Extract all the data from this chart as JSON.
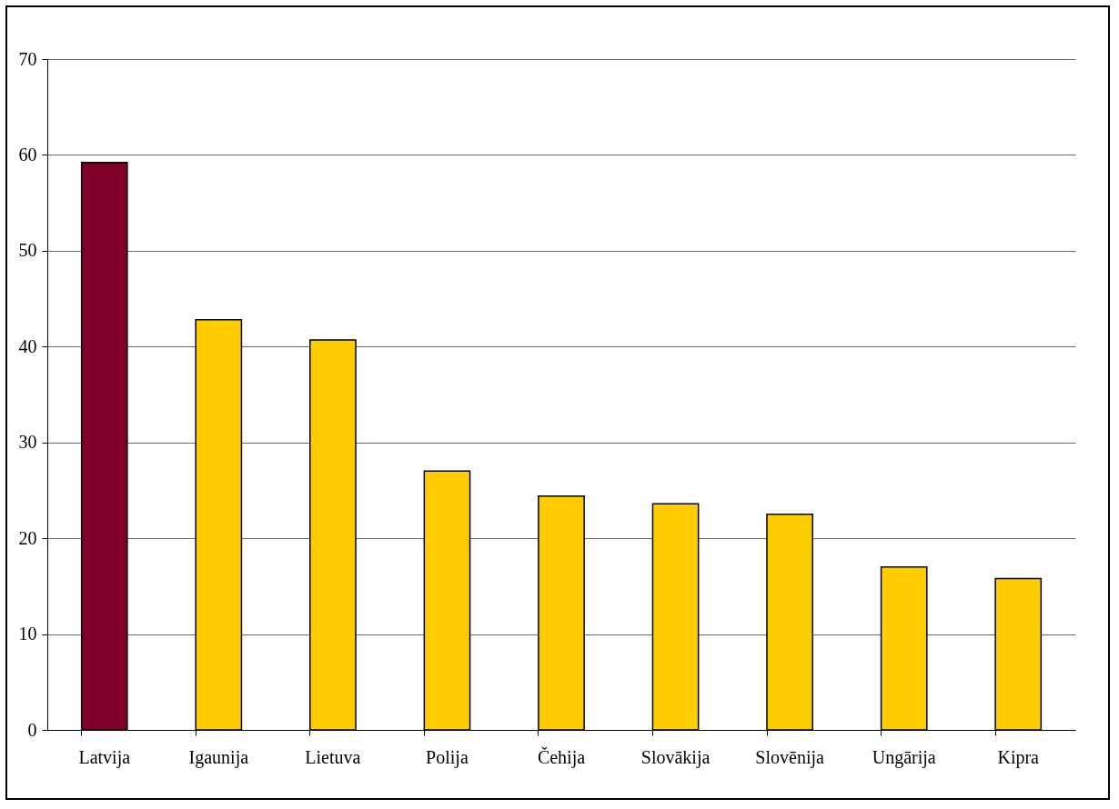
{
  "chart_data": {
    "type": "bar",
    "categories": [
      "Latvija",
      "Igaunija",
      "Lietuva",
      "Polija",
      "Čehija",
      "Slovākija",
      "Slovēnija",
      "Ungārija",
      "Kipra"
    ],
    "values": [
      59.2,
      42.8,
      40.7,
      27.0,
      24.4,
      23.6,
      22.5,
      17.0,
      15.8
    ],
    "colors": [
      "#7f0028",
      "#ffcc00",
      "#ffcc00",
      "#ffcc00",
      "#ffcc00",
      "#ffcc00",
      "#ffcc00",
      "#ffcc00",
      "#ffcc00"
    ],
    "ylim": [
      0,
      70
    ],
    "yticks": [
      0,
      10,
      20,
      30,
      40,
      50,
      60,
      70
    ],
    "grid": "y"
  }
}
